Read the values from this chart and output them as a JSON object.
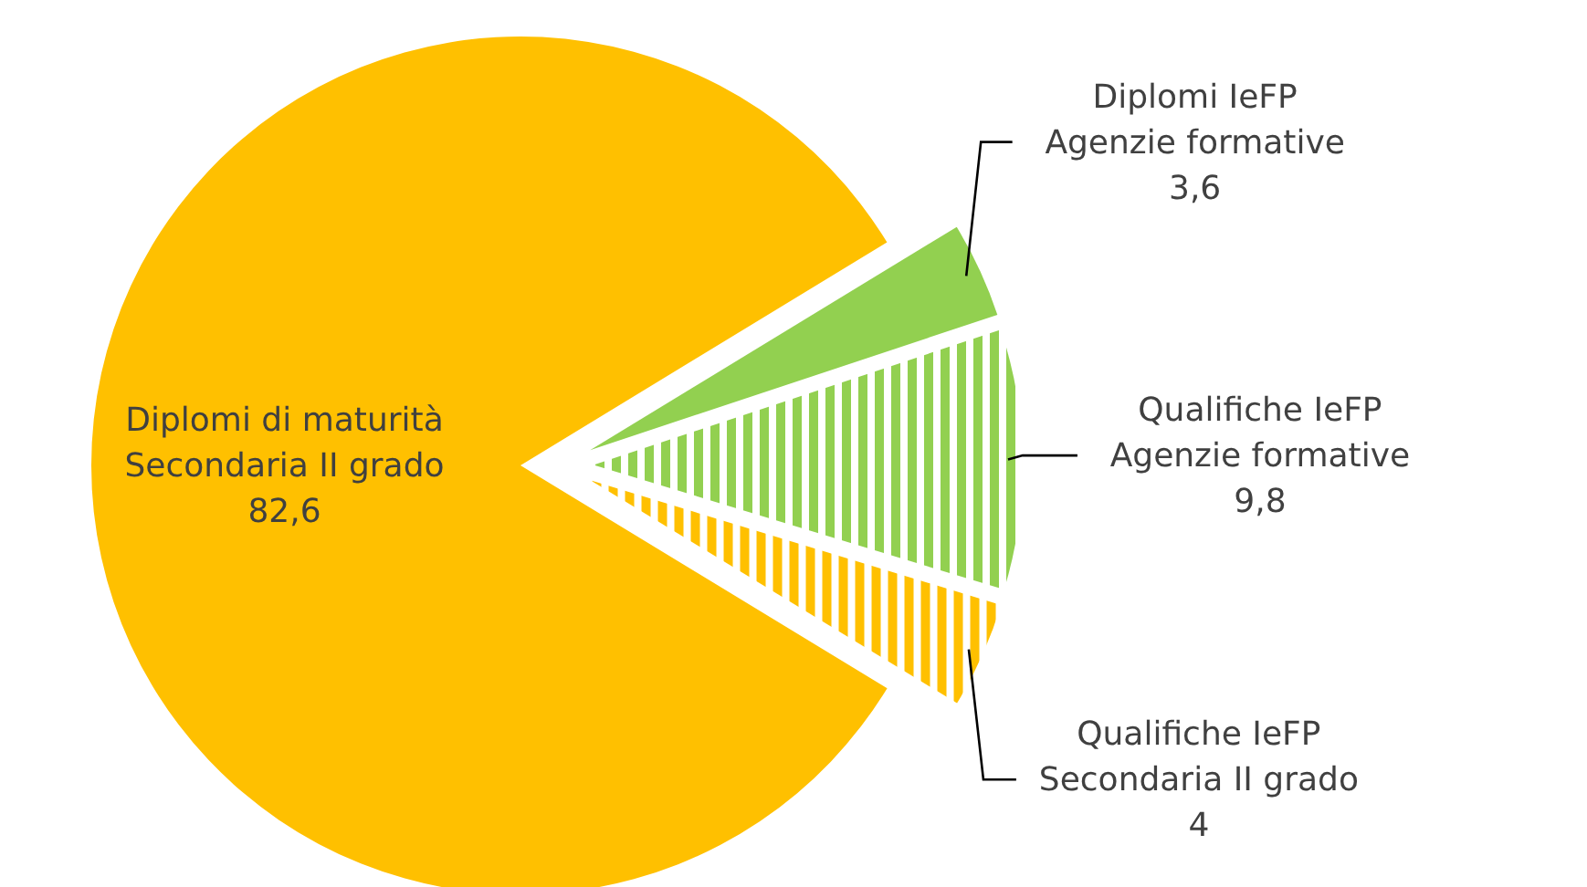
{
  "chart_data": {
    "type": "pie",
    "categories": [
      "Diplomi di maturità\nSecondaria II grado",
      "Diplomi IeFP\nAgenzie formative",
      "Qualifiche IeFP\nAgenzie formative",
      "Qualifiche IeFP\nSecondaria II grado"
    ],
    "values": [
      82.6,
      3.6,
      9.8,
      4
    ],
    "value_labels": [
      "82,6",
      "3,6",
      "9,8",
      "4"
    ],
    "colors": [
      "#ffc000",
      "#92d050",
      "#92d050",
      "#ffc000"
    ],
    "legend": false
  }
}
